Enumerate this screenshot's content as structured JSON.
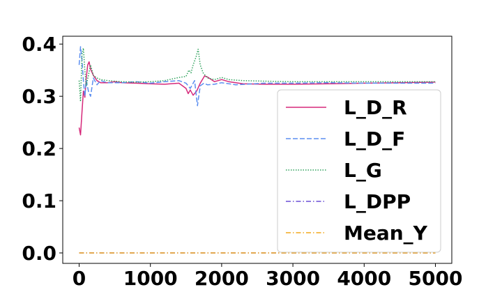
{
  "chart_data": {
    "type": "line",
    "title": "",
    "xlabel": "",
    "ylabel": "",
    "xlim": [
      -230,
      5230
    ],
    "ylim": [
      -0.02,
      0.415
    ],
    "xticks": [
      0,
      1000,
      2000,
      3000,
      4000,
      5000
    ],
    "xtick_labels": [
      "0",
      "1000",
      "2000",
      "3000",
      "4000",
      "5000"
    ],
    "yticks": [
      0.0,
      0.1,
      0.2,
      0.3,
      0.4
    ],
    "ytick_labels": [
      "0.0",
      "0.1",
      "0.2",
      "0.3",
      "0.4"
    ],
    "grid": false,
    "legend_position": "lower-right",
    "series": [
      {
        "name": "L_D_R",
        "color": "#d6287a",
        "dash": "solid",
        "points": [
          [
            0,
            0.24
          ],
          [
            20,
            0.226
          ],
          [
            40,
            0.27
          ],
          [
            60,
            0.31
          ],
          [
            80,
            0.298
          ],
          [
            100,
            0.335
          ],
          [
            120,
            0.36
          ],
          [
            140,
            0.366
          ],
          [
            160,
            0.352
          ],
          [
            200,
            0.34
          ],
          [
            250,
            0.33
          ],
          [
            300,
            0.326
          ],
          [
            400,
            0.326
          ],
          [
            500,
            0.328
          ],
          [
            600,
            0.326
          ],
          [
            800,
            0.325
          ],
          [
            1000,
            0.324
          ],
          [
            1200,
            0.323
          ],
          [
            1400,
            0.325
          ],
          [
            1500,
            0.315
          ],
          [
            1530,
            0.305
          ],
          [
            1560,
            0.312
          ],
          [
            1600,
            0.302
          ],
          [
            1650,
            0.31
          ],
          [
            1700,
            0.325
          ],
          [
            1760,
            0.339
          ],
          [
            1800,
            0.337
          ],
          [
            1900,
            0.328
          ],
          [
            2000,
            0.332
          ],
          [
            2100,
            0.328
          ],
          [
            2300,
            0.324
          ],
          [
            2600,
            0.323
          ],
          [
            3000,
            0.323
          ],
          [
            3500,
            0.324
          ],
          [
            4000,
            0.325
          ],
          [
            4500,
            0.326
          ],
          [
            5000,
            0.327
          ]
        ]
      },
      {
        "name": "L_D_F",
        "color": "#5b8ef0",
        "dash": "dashed",
        "points": [
          [
            0,
            0.36
          ],
          [
            20,
            0.395
          ],
          [
            40,
            0.37
          ],
          [
            60,
            0.33
          ],
          [
            80,
            0.3
          ],
          [
            100,
            0.33
          ],
          [
            130,
            0.31
          ],
          [
            160,
            0.3
          ],
          [
            200,
            0.335
          ],
          [
            250,
            0.322
          ],
          [
            300,
            0.33
          ],
          [
            400,
            0.326
          ],
          [
            600,
            0.326
          ],
          [
            800,
            0.328
          ],
          [
            1000,
            0.325
          ],
          [
            1200,
            0.328
          ],
          [
            1400,
            0.33
          ],
          [
            1500,
            0.325
          ],
          [
            1560,
            0.315
          ],
          [
            1620,
            0.33
          ],
          [
            1660,
            0.282
          ],
          [
            1700,
            0.32
          ],
          [
            1750,
            0.325
          ],
          [
            1800,
            0.322
          ],
          [
            1900,
            0.323
          ],
          [
            2000,
            0.326
          ],
          [
            2200,
            0.322
          ],
          [
            2600,
            0.325
          ],
          [
            3000,
            0.325
          ],
          [
            3500,
            0.326
          ],
          [
            4000,
            0.325
          ],
          [
            4500,
            0.325
          ],
          [
            5000,
            0.325
          ]
        ]
      },
      {
        "name": "L_G",
        "color": "#2ca05a",
        "dash": "dotted",
        "points": [
          [
            0,
            0.33
          ],
          [
            20,
            0.29
          ],
          [
            40,
            0.38
          ],
          [
            60,
            0.392
          ],
          [
            80,
            0.35
          ],
          [
            100,
            0.32
          ],
          [
            130,
            0.34
          ],
          [
            160,
            0.36
          ],
          [
            200,
            0.34
          ],
          [
            250,
            0.335
          ],
          [
            300,
            0.332
          ],
          [
            400,
            0.33
          ],
          [
            600,
            0.328
          ],
          [
            800,
            0.327
          ],
          [
            1000,
            0.328
          ],
          [
            1200,
            0.33
          ],
          [
            1400,
            0.336
          ],
          [
            1500,
            0.338
          ],
          [
            1540,
            0.35
          ],
          [
            1570,
            0.345
          ],
          [
            1600,
            0.36
          ],
          [
            1640,
            0.375
          ],
          [
            1670,
            0.39
          ],
          [
            1700,
            0.36
          ],
          [
            1740,
            0.345
          ],
          [
            1800,
            0.335
          ],
          [
            1900,
            0.332
          ],
          [
            2000,
            0.336
          ],
          [
            2100,
            0.332
          ],
          [
            2300,
            0.33
          ],
          [
            2600,
            0.329
          ],
          [
            3000,
            0.328
          ],
          [
            3500,
            0.328
          ],
          [
            4000,
            0.328
          ],
          [
            4500,
            0.328
          ],
          [
            5000,
            0.328
          ]
        ]
      },
      {
        "name": "L_DPP",
        "color": "#6a4fd6",
        "dash": "dashdot",
        "points": [
          [
            0,
            0.0
          ],
          [
            5000,
            0.0
          ]
        ]
      },
      {
        "name": "Mean_Y",
        "color": "#f2a81c",
        "dash": "dashdot",
        "points": [
          [
            0,
            0.0
          ],
          [
            5000,
            0.0
          ]
        ]
      }
    ]
  }
}
